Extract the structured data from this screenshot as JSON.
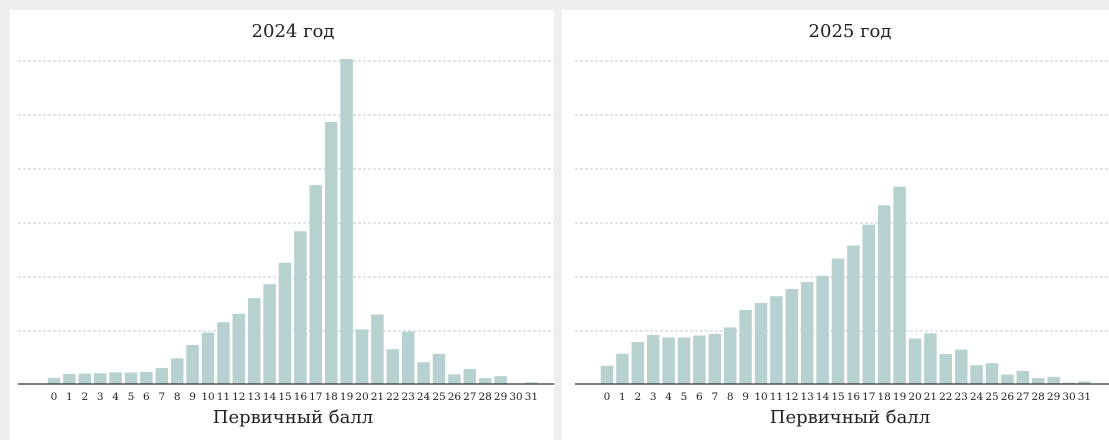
{
  "colors": {
    "bar": "#b7d0d0",
    "grid": "#c8c8c8",
    "axis": "#333333",
    "page": "#eeeeee",
    "panel": "#ffffff"
  },
  "chart_data": [
    {
      "type": "bar",
      "title": "2024 год",
      "xlabel": "Первичный балл",
      "ylabel": "",
      "y_tick_labels_shown": false,
      "grid": "horizontal dashed",
      "ylim": [
        0,
        1
      ],
      "categories": [
        "0",
        "1",
        "2",
        "3",
        "4",
        "5",
        "6",
        "7",
        "8",
        "9",
        "10",
        "11",
        "12",
        "13",
        "14",
        "15",
        "16",
        "17",
        "18",
        "19",
        "20",
        "21",
        "22",
        "23",
        "24",
        "25",
        "26",
        "27",
        "28",
        "29",
        "30",
        "31"
      ],
      "values": [
        0.019,
        0.031,
        0.032,
        0.033,
        0.036,
        0.035,
        0.037,
        0.049,
        0.079,
        0.12,
        0.158,
        0.19,
        0.216,
        0.264,
        0.307,
        0.373,
        0.47,
        0.612,
        0.806,
        1.0,
        0.168,
        0.214,
        0.107,
        0.161,
        0.067,
        0.093,
        0.03,
        0.046,
        0.018,
        0.024,
        0.0,
        0.005
      ]
    },
    {
      "type": "bar",
      "title": "2025 год",
      "xlabel": "Первичный балл",
      "ylabel": "",
      "y_tick_labels_shown": false,
      "grid": "horizontal dashed",
      "ylim": [
        0,
        1
      ],
      "categories": [
        "0",
        "1",
        "2",
        "3",
        "4",
        "5",
        "6",
        "7",
        "8",
        "9",
        "10",
        "11",
        "12",
        "13",
        "14",
        "15",
        "16",
        "17",
        "18",
        "19",
        "20",
        "21",
        "22",
        "23",
        "24",
        "25",
        "26",
        "27",
        "28",
        "29",
        "30",
        "31"
      ],
      "values": [
        0.056,
        0.093,
        0.129,
        0.151,
        0.143,
        0.143,
        0.149,
        0.154,
        0.174,
        0.228,
        0.249,
        0.27,
        0.292,
        0.314,
        0.333,
        0.386,
        0.426,
        0.49,
        0.55,
        0.607,
        0.14,
        0.156,
        0.092,
        0.106,
        0.058,
        0.064,
        0.029,
        0.04,
        0.018,
        0.022,
        0.004,
        0.008
      ]
    }
  ]
}
